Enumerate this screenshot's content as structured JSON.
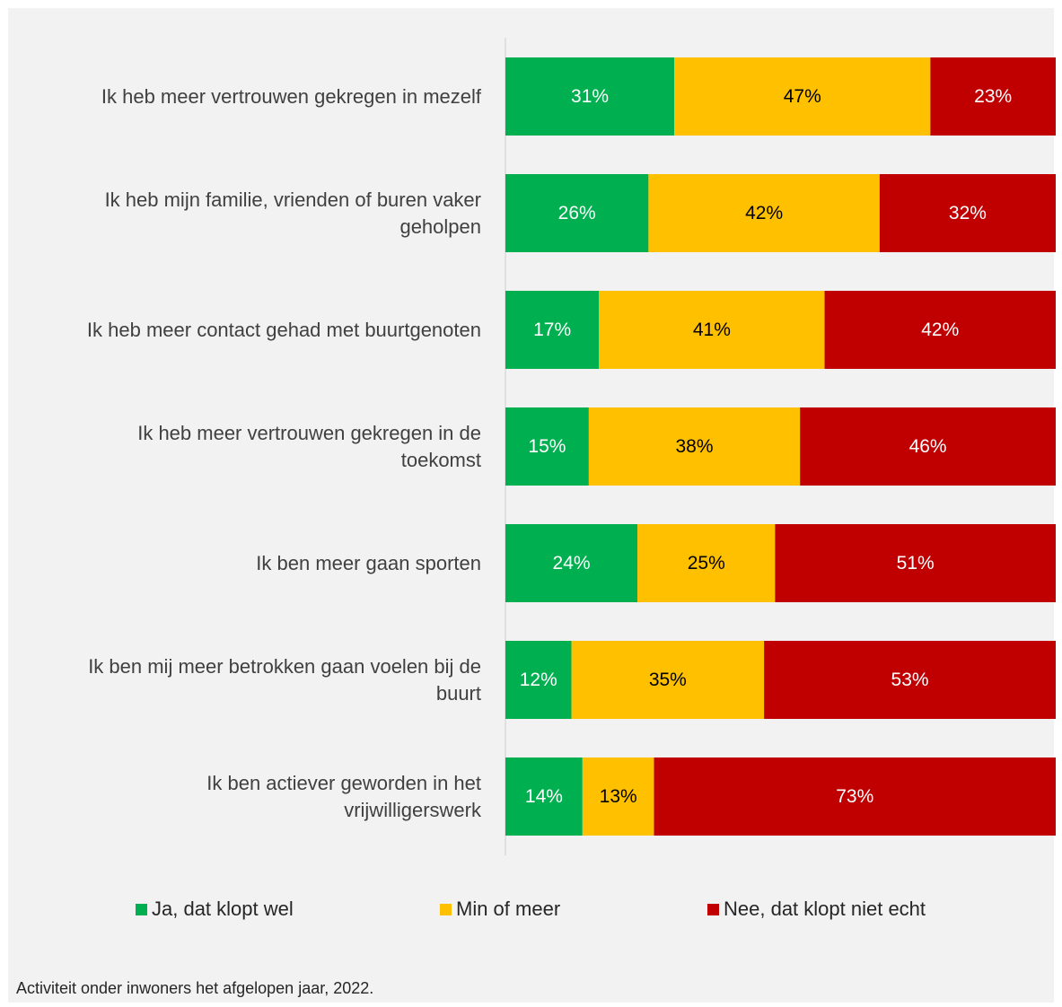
{
  "chart_data": {
    "type": "bar",
    "orientation": "horizontal",
    "stacked": true,
    "categories": [
      "Ik heb meer vertrouwen gekregen in mezelf",
      "Ik heb mijn familie, vrienden of buren vaker geholpen",
      "Ik heb meer contact gehad met buurtgenoten",
      "Ik heb meer vertrouwen gekregen in de toekomst",
      "Ik ben meer gaan sporten",
      "Ik ben mij meer betrokken gaan voelen bij de buurt",
      "Ik ben actiever geworden in het vrijwilligerswerk"
    ],
    "category_lines": [
      [
        "Ik heb meer vertrouwen gekregen in mezelf"
      ],
      [
        "Ik heb mijn familie, vrienden of buren vaker",
        "geholpen"
      ],
      [
        "Ik heb meer contact gehad met buurtgenoten"
      ],
      [
        "Ik heb meer vertrouwen gekregen in de",
        "toekomst"
      ],
      [
        "Ik ben meer gaan sporten"
      ],
      [
        "Ik ben mij meer betrokken gaan voelen bij de",
        "buurt"
      ],
      [
        "Ik ben actiever geworden in het",
        "vrijwilligerswerk"
      ]
    ],
    "series": [
      {
        "name": "Ja, dat klopt wel",
        "color": "#00b050",
        "label_color": "#ffffff",
        "values": [
          31,
          26,
          17,
          15,
          24,
          12,
          14
        ]
      },
      {
        "name": "Min of meer",
        "color": "#ffc000",
        "label_color": "#000000",
        "values": [
          47,
          42,
          41,
          38,
          25,
          35,
          13
        ]
      },
      {
        "name": "Nee, dat klopt niet echt",
        "color": "#c00000",
        "label_color": "#ffffff",
        "values": [
          23,
          32,
          42,
          46,
          51,
          53,
          73
        ]
      }
    ],
    "value_suffix": "%",
    "xlim": [
      0,
      100
    ],
    "legend_position": "bottom",
    "grid": false
  },
  "footnote": "Activiteit onder inwoners het afgelopen jaar, 2022."
}
